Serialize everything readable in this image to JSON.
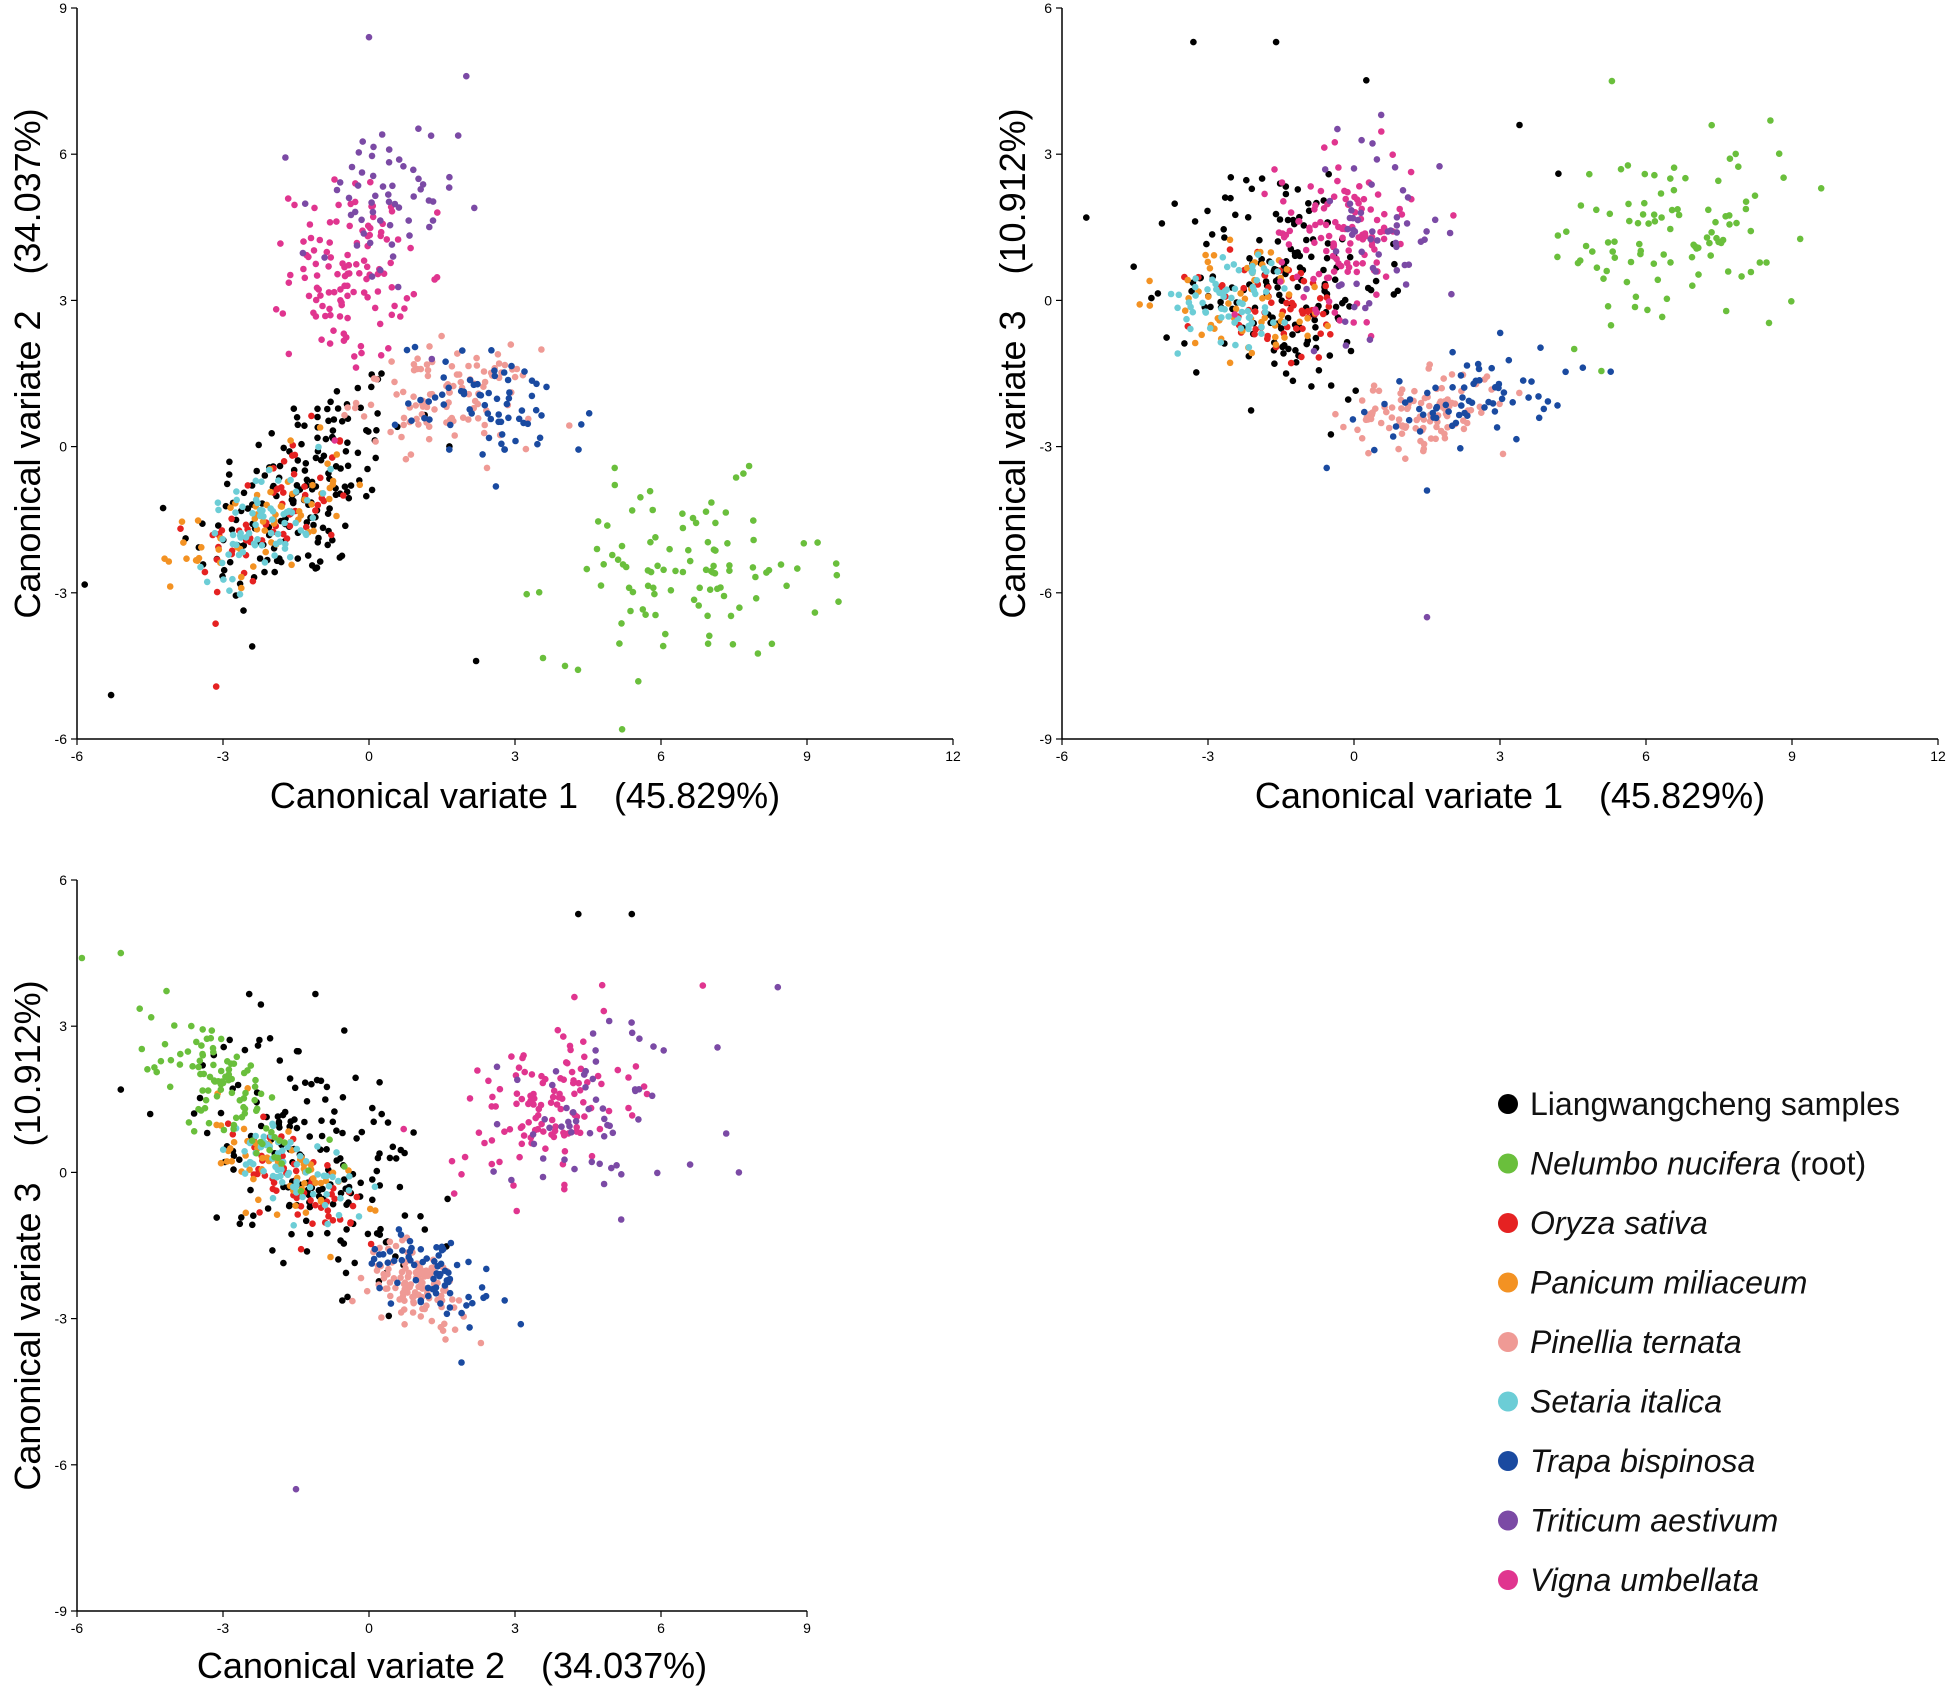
{
  "legend": {
    "items": [
      {
        "label": "Liangwangcheng samples",
        "italic": false,
        "suffix": "",
        "color": "#000000"
      },
      {
        "label": "Nelumbo nucifera",
        "italic": true,
        "suffix": " (root)",
        "color": "#6abf3c"
      },
      {
        "label": "Oryza sativa",
        "italic": true,
        "suffix": "",
        "color": "#e52222"
      },
      {
        "label": "Panicum miliaceum",
        "italic": true,
        "suffix": "",
        "color": "#f39223"
      },
      {
        "label": "Pinellia ternata",
        "italic": true,
        "suffix": "",
        "color": "#ef9a95"
      },
      {
        "label": "Setaria italica",
        "italic": true,
        "suffix": "",
        "color": "#6ccdd6"
      },
      {
        "label": "Trapa bispinosa",
        "italic": true,
        "suffix": "",
        "color": "#1a4aa0"
      },
      {
        "label": "Triticum aestivum",
        "italic": true,
        "suffix": "",
        "color": "#7b4aa5"
      },
      {
        "label": "Vigna umbellata",
        "italic": true,
        "suffix": "",
        "color": "#e0358f"
      }
    ]
  },
  "chart_data": [
    {
      "type": "scatter",
      "xlabel": "Canonical variate 1　(45.829%)",
      "ylabel": "Canonical variate  2　(34.037%)",
      "xlim": [
        -6,
        12
      ],
      "ylim": [
        -6,
        9
      ],
      "xticks": [
        "-6",
        "-3",
        "0",
        "3",
        "6",
        "9",
        "12"
      ],
      "yticks": [
        "-6",
        "-3",
        "0",
        "3",
        "6",
        "9"
      ],
      "xtick_values": [
        -6,
        -3,
        0,
        3,
        6,
        9,
        12
      ],
      "ytick_values": [
        -6,
        -3,
        0,
        3,
        6,
        9
      ],
      "clusters": [
        {
          "group": 0,
          "cx": -1.4,
          "cy": -0.9,
          "sx": 1.1,
          "sy": 1.2,
          "n": 170,
          "rho": 0.5
        },
        {
          "group": 2,
          "cx": -1.9,
          "cy": -1.4,
          "sx": 0.8,
          "sy": 0.8,
          "n": 60,
          "rho": 0.5
        },
        {
          "group": 3,
          "cx": -2.1,
          "cy": -1.5,
          "sx": 0.8,
          "sy": 0.7,
          "n": 60,
          "rho": 0.5
        },
        {
          "group": 5,
          "cx": -2.2,
          "cy": -1.6,
          "sx": 0.6,
          "sy": 0.6,
          "n": 70,
          "rho": 0.5
        },
        {
          "group": 4,
          "cx": 1.6,
          "cy": 1.0,
          "sx": 0.9,
          "sy": 0.5,
          "n": 110,
          "rho": 0.0
        },
        {
          "group": 6,
          "cx": 2.6,
          "cy": 0.8,
          "sx": 1.0,
          "sy": 0.6,
          "n": 70,
          "rho": -0.2
        },
        {
          "group": 8,
          "cx": -0.4,
          "cy": 3.6,
          "sx": 0.6,
          "sy": 0.9,
          "n": 120,
          "rho": 0.0
        },
        {
          "group": 7,
          "cx": 0.2,
          "cy": 4.8,
          "sx": 0.8,
          "sy": 1.0,
          "n": 60,
          "rho": 0.0
        },
        {
          "group": 1,
          "cx": 6.5,
          "cy": -2.6,
          "sx": 1.4,
          "sy": 0.9,
          "n": 100,
          "rho": 0.0
        }
      ],
      "extra_points": [
        {
          "group": 0,
          "x": -5.3,
          "y": -5.1
        },
        {
          "group": 7,
          "x": 0.0,
          "y": 8.4
        },
        {
          "group": 7,
          "x": 2.0,
          "y": 7.6
        },
        {
          "group": 1,
          "x": 5.2,
          "y": -5.8
        },
        {
          "group": 1,
          "x": 9.6,
          "y": -2.4
        },
        {
          "group": 0,
          "x": -2.4,
          "y": -4.1
        },
        {
          "group": 0,
          "x": 2.2,
          "y": -4.4
        },
        {
          "group": 3,
          "x": -4.2,
          "y": -2.3
        }
      ]
    },
    {
      "type": "scatter",
      "xlabel": "Canonical variate 1　(45.829%)",
      "ylabel": "Canonical variate  3　(10.912%)",
      "xlim": [
        -6,
        12
      ],
      "ylim": [
        -9,
        6
      ],
      "xticks": [
        "-6",
        "-3",
        "0",
        "3",
        "6",
        "9",
        "12"
      ],
      "yticks": [
        "-9",
        "-6",
        "-3",
        "0",
        "3",
        "6"
      ],
      "xtick_values": [
        -6,
        -3,
        0,
        3,
        6,
        9,
        12
      ],
      "ytick_values": [
        -9,
        -6,
        -3,
        0,
        3,
        6
      ],
      "clusters": [
        {
          "group": 0,
          "cx": -1.4,
          "cy": 0.4,
          "sx": 1.0,
          "sy": 1.2,
          "n": 170,
          "rho": 0.0
        },
        {
          "group": 2,
          "cx": -1.6,
          "cy": -0.2,
          "sx": 0.8,
          "sy": 0.6,
          "n": 60,
          "rho": 0.0
        },
        {
          "group": 3,
          "cx": -2.0,
          "cy": 0.0,
          "sx": 0.9,
          "sy": 0.6,
          "n": 60,
          "rho": 0.0
        },
        {
          "group": 5,
          "cx": -2.4,
          "cy": 0.1,
          "sx": 0.6,
          "sy": 0.5,
          "n": 70,
          "rho": 0.0
        },
        {
          "group": 8,
          "cx": -0.2,
          "cy": 1.4,
          "sx": 0.7,
          "sy": 0.8,
          "n": 120,
          "rho": 0.0
        },
        {
          "group": 7,
          "cx": 0.4,
          "cy": 1.4,
          "sx": 0.7,
          "sy": 1.0,
          "n": 60,
          "rho": 0.0
        },
        {
          "group": 4,
          "cx": 1.4,
          "cy": -2.3,
          "sx": 0.8,
          "sy": 0.4,
          "n": 110,
          "rho": 0.3
        },
        {
          "group": 6,
          "cx": 2.4,
          "cy": -2.0,
          "sx": 1.0,
          "sy": 0.5,
          "n": 70,
          "rho": 0.4
        },
        {
          "group": 1,
          "cx": 6.6,
          "cy": 1.2,
          "sx": 1.3,
          "sy": 1.0,
          "n": 100,
          "rho": 0.0
        }
      ],
      "extra_points": [
        {
          "group": 0,
          "x": -5.5,
          "y": 1.7
        },
        {
          "group": 0,
          "x": -3.3,
          "y": 5.3
        },
        {
          "group": 0,
          "x": -1.6,
          "y": 5.3
        },
        {
          "group": 7,
          "x": 1.5,
          "y": -6.5
        },
        {
          "group": 6,
          "x": 1.5,
          "y": -3.9
        },
        {
          "group": 1,
          "x": 5.3,
          "y": 4.5
        },
        {
          "group": 1,
          "x": 9.6,
          "y": 2.3
        },
        {
          "group": 3,
          "x": -4.2,
          "y": 0.4
        },
        {
          "group": 0,
          "x": 3.4,
          "y": 3.6
        },
        {
          "group": 0,
          "x": 4.2,
          "y": 2.6
        }
      ]
    },
    {
      "type": "scatter",
      "xlabel": "Canonical variate 2　(34.037%)",
      "ylabel": "Canonical variate  3　(10.912%)",
      "xlim": [
        -6,
        9
      ],
      "ylim": [
        -9,
        6
      ],
      "xticks": [
        "-6",
        "-3",
        "0",
        "3",
        "6",
        "9"
      ],
      "yticks": [
        "-9",
        "-6",
        "-3",
        "0",
        "3",
        "6"
      ],
      "xtick_values": [
        -6,
        -3,
        0,
        3,
        6,
        9
      ],
      "ytick_values": [
        -9,
        -6,
        -3,
        0,
        3,
        6
      ],
      "clusters": [
        {
          "group": 0,
          "cx": -1.2,
          "cy": 0.4,
          "sx": 1.1,
          "sy": 1.2,
          "n": 170,
          "rho": -0.3
        },
        {
          "group": 2,
          "cx": -1.5,
          "cy": -0.2,
          "sx": 0.7,
          "sy": 0.7,
          "n": 60,
          "rho": -0.6
        },
        {
          "group": 3,
          "cx": -1.7,
          "cy": 0.0,
          "sx": 0.7,
          "sy": 0.6,
          "n": 60,
          "rho": -0.6
        },
        {
          "group": 5,
          "cx": -1.6,
          "cy": 0.1,
          "sx": 0.6,
          "sy": 0.5,
          "n": 70,
          "rho": -0.6
        },
        {
          "group": 1,
          "cx": -3.0,
          "cy": 1.8,
          "sx": 0.9,
          "sy": 0.9,
          "n": 100,
          "rho": -0.8
        },
        {
          "group": 4,
          "cx": 1.0,
          "cy": -2.3,
          "sx": 0.5,
          "sy": 0.4,
          "n": 110,
          "rho": -0.3
        },
        {
          "group": 6,
          "cx": 1.3,
          "cy": -2.1,
          "sx": 0.7,
          "sy": 0.5,
          "n": 70,
          "rho": -0.5
        },
        {
          "group": 8,
          "cx": 3.6,
          "cy": 1.3,
          "sx": 0.9,
          "sy": 0.8,
          "n": 120,
          "rho": 0.3
        },
        {
          "group": 7,
          "cx": 4.8,
          "cy": 1.3,
          "sx": 1.0,
          "sy": 1.0,
          "n": 60,
          "rho": 0.3
        }
      ],
      "extra_points": [
        {
          "group": 1,
          "x": -5.9,
          "y": 4.4
        },
        {
          "group": 1,
          "x": -5.1,
          "y": 4.5
        },
        {
          "group": 0,
          "x": 4.3,
          "y": 5.3
        },
        {
          "group": 0,
          "x": 5.4,
          "y": 5.3
        },
        {
          "group": 0,
          "x": -5.1,
          "y": 1.7
        },
        {
          "group": 7,
          "x": 8.4,
          "y": 3.8
        },
        {
          "group": 7,
          "x": 7.6,
          "y": 0.0
        },
        {
          "group": 7,
          "x": -1.5,
          "y": -6.5
        },
        {
          "group": 6,
          "x": 1.9,
          "y": -3.9
        },
        {
          "group": 4,
          "x": 2.3,
          "y": -3.5
        }
      ]
    }
  ]
}
